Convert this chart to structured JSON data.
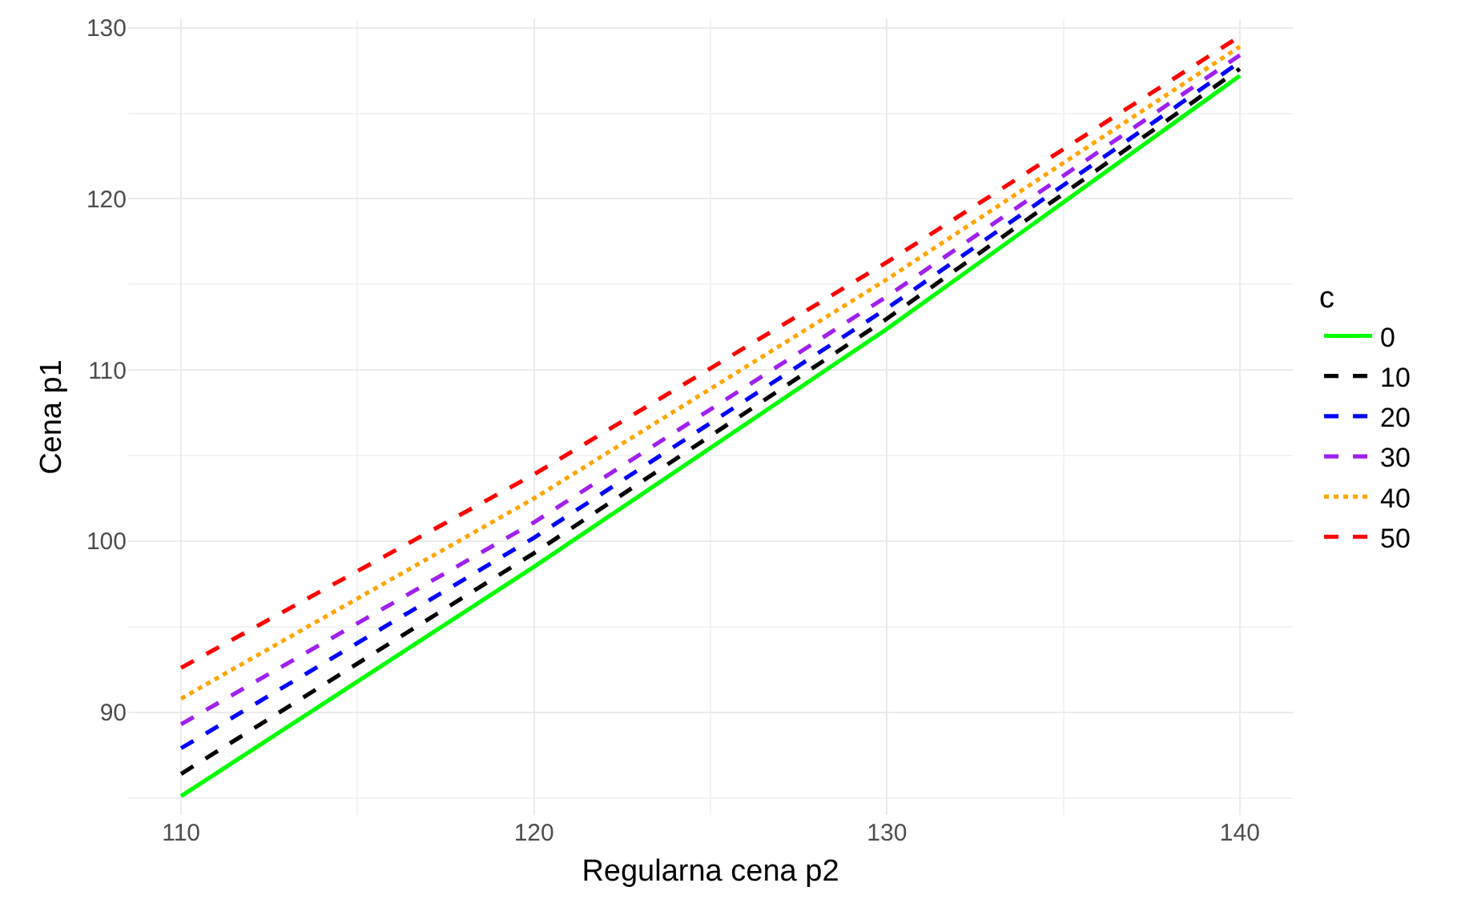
{
  "chart_data": {
    "type": "line",
    "xlabel": "Regularna cena p2",
    "ylabel": "Cena p1",
    "legend_title": "c",
    "x": [
      110,
      120,
      130,
      140
    ],
    "series": [
      {
        "name": "0",
        "color": "#00ff00",
        "line_style": "solid",
        "values": [
          85.1,
          98.5,
          112.4,
          127.2
        ]
      },
      {
        "name": "10",
        "color": "#000000",
        "line_style": "dashed",
        "values": [
          86.4,
          99.3,
          113.0,
          127.6
        ]
      },
      {
        "name": "20",
        "color": "#0000ff",
        "line_style": "dashed",
        "values": [
          87.9,
          100.2,
          113.6,
          128.0
        ]
      },
      {
        "name": "30",
        "color": "#a020f0",
        "line_style": "dashed",
        "values": [
          89.3,
          101.1,
          114.3,
          128.4
        ]
      },
      {
        "name": "40",
        "color": "#ffa500",
        "line_style": "dotted",
        "values": [
          90.8,
          102.5,
          115.3,
          128.9
        ]
      },
      {
        "name": "50",
        "color": "#ff0000",
        "line_style": "dashed",
        "values": [
          92.6,
          103.9,
          116.3,
          129.5
        ]
      }
    ],
    "xlim": [
      108.5,
      141.5
    ],
    "ylim": [
      84,
      130.5
    ],
    "xticks": [
      110,
      120,
      130,
      140
    ],
    "yticks": [
      90,
      100,
      110,
      120,
      130
    ],
    "grid": true,
    "legend": "right",
    "marker": "none"
  }
}
